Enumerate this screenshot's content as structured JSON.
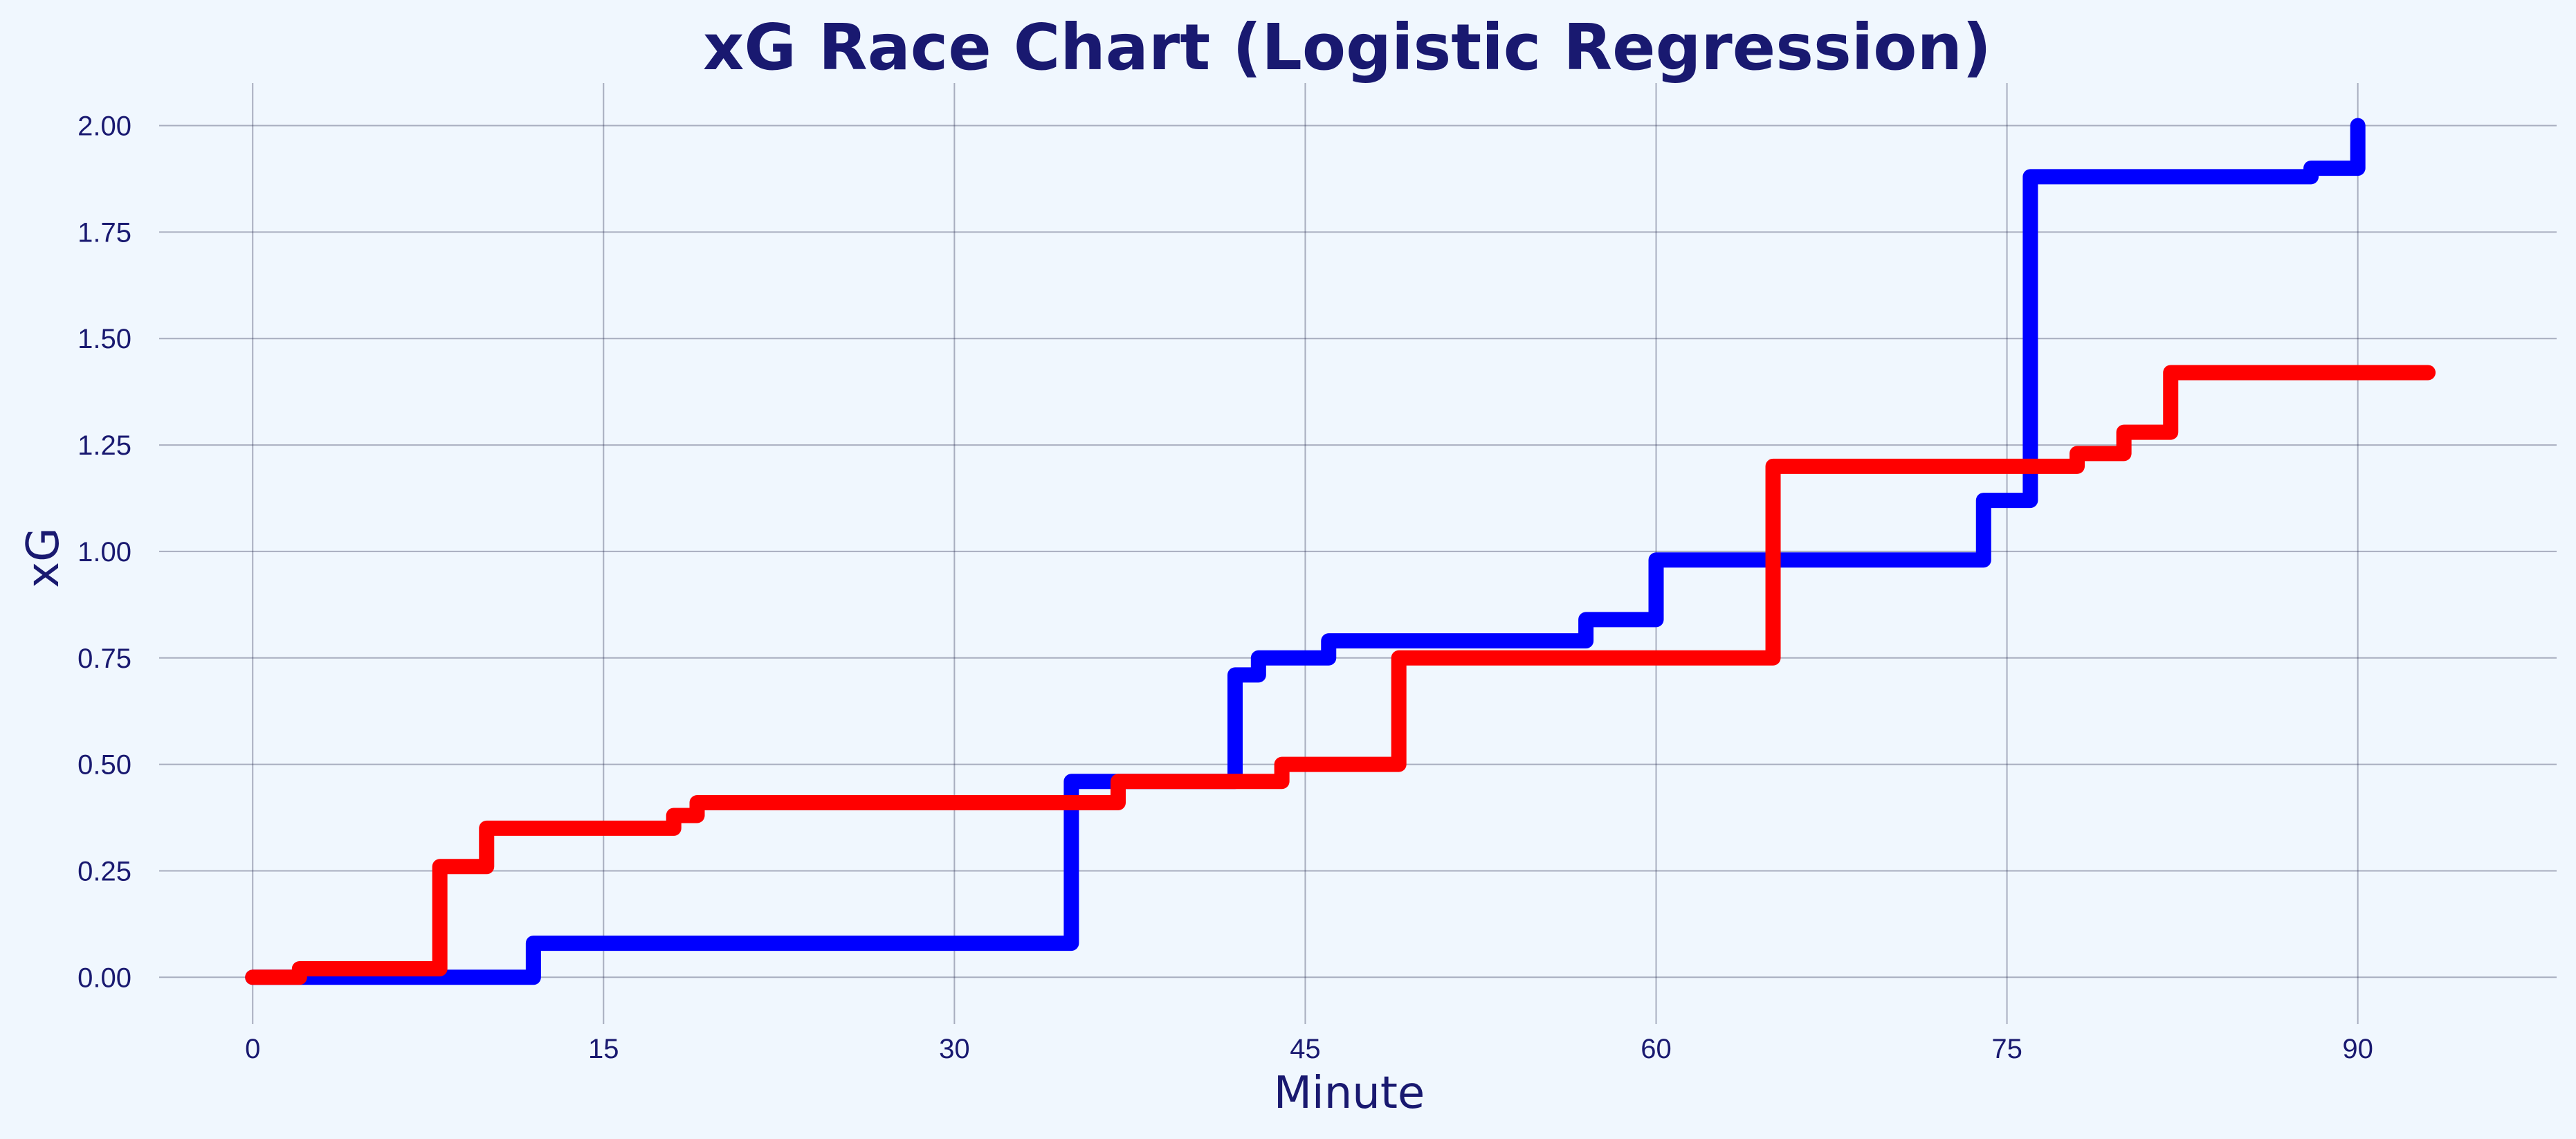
{
  "chart_data": {
    "type": "line",
    "step": "post",
    "title": "xG Race Chart (Logistic Regression)",
    "xlabel": "Minute",
    "ylabel": "xG",
    "xlim": [
      -4,
      98.5
    ],
    "ylim": [
      -0.11,
      2.1
    ],
    "xticks": [
      0,
      15,
      30,
      45,
      60,
      75,
      90
    ],
    "xtick_labels": [
      "0",
      "15",
      "30",
      "45",
      "60",
      "75",
      "90"
    ],
    "yticks": [
      0,
      0.25,
      0.5,
      0.75,
      1.0,
      1.25,
      1.5,
      1.75,
      2.0
    ],
    "ytick_labels": [
      "0.00",
      "0.25",
      "0.50",
      "0.75",
      "1.00",
      "1.25",
      "1.50",
      "1.75",
      "2.00"
    ],
    "grid": true,
    "legend": "none",
    "series": [
      {
        "name": "blue",
        "color": "#0000FF",
        "x": [
          0,
          12,
          35,
          42,
          43,
          46,
          57,
          60,
          74,
          76,
          88,
          90
        ],
        "y": [
          0.0,
          0.08,
          0.46,
          0.71,
          0.75,
          0.79,
          0.84,
          0.98,
          1.12,
          1.88,
          1.9,
          2.0
        ]
      },
      {
        "name": "red",
        "color": "#FF0000",
        "x": [
          0,
          2,
          8,
          10,
          18,
          19,
          37,
          44,
          49,
          65,
          78,
          80,
          82,
          93
        ],
        "y": [
          0.0,
          0.02,
          0.26,
          0.35,
          0.38,
          0.41,
          0.46,
          0.5,
          0.75,
          1.2,
          1.23,
          1.28,
          1.42,
          1.42
        ]
      }
    ]
  }
}
